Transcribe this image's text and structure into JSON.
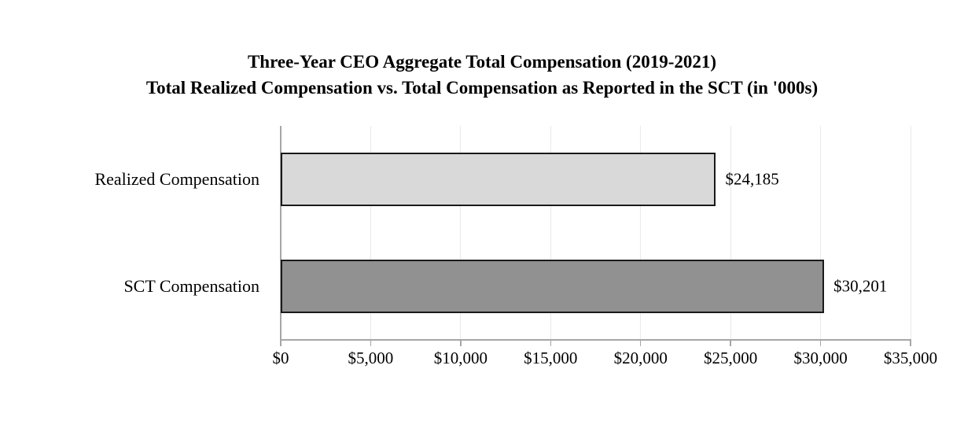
{
  "chart_data": {
    "type": "bar",
    "orientation": "horizontal",
    "title": "Three-Year CEO Aggregate Total Compensation (2019-2021)",
    "subtitle": "Total Realized Compensation vs. Total Compensation as Reported in the SCT (in '000s)",
    "categories": [
      "Realized Compensation",
      "SCT Compensation"
    ],
    "values": [
      24185,
      30201
    ],
    "data_labels": [
      "$24,185",
      "$30,201"
    ],
    "bar_fill_colors": [
      "#d9d9d9",
      "#919191"
    ],
    "bar_border_color": "#1a1a1a",
    "xlim": [
      0,
      35000
    ],
    "x_ticks": [
      0,
      5000,
      10000,
      15000,
      20000,
      25000,
      30000,
      35000
    ],
    "x_tick_labels": [
      "$0",
      "$5,000",
      "$10,000",
      "$15,000",
      "$20,000",
      "$25,000",
      "$30,000",
      "$35,000"
    ],
    "grid": "vertical-gridlines-on",
    "legend": "none",
    "gridline_color": "#e9e9e9",
    "axis_color": "#a6a6a6",
    "text_color": "#000000",
    "background_color": "#ffffff"
  }
}
